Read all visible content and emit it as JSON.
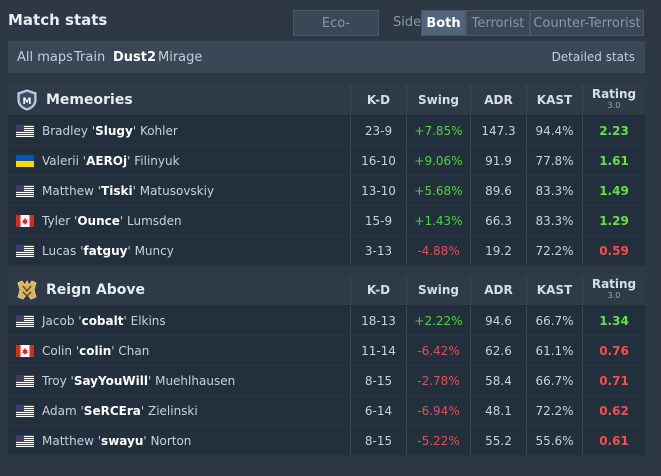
{
  "header": {
    "title": "Match stats",
    "eco_label": "Eco-adjusted",
    "side_label": "Side",
    "side_options": [
      "Both",
      "Terrorist",
      "Counter-Terrorist"
    ],
    "selected_side": "Both"
  },
  "maps": {
    "items": [
      "All maps",
      "Train",
      "Dust2",
      "Mirage"
    ],
    "active": "Dust2",
    "detailed_label": "Detailed stats"
  },
  "columns": {
    "kd": "K-D",
    "swing": "Swing",
    "adr": "ADR",
    "kast": "KAST",
    "rating": "Rating",
    "rating_version": "3.0"
  },
  "teams": [
    {
      "name": "Memeories",
      "logo_icon": "memeories-shield-logo",
      "players": [
        {
          "first": "Bradley",
          "nick": "Slugy",
          "last": "Kohler",
          "flag": "us",
          "kd": "23-9",
          "swing": "+7.85%",
          "adr": "147.3",
          "kast": "94.4%",
          "rating": "2.23"
        },
        {
          "first": "Valerii",
          "nick": "AEROj",
          "last": "Filinyuk",
          "flag": "ua",
          "kd": "16-10",
          "swing": "+9.06%",
          "adr": "91.9",
          "kast": "77.8%",
          "rating": "1.61"
        },
        {
          "first": "Matthew",
          "nick": "Tiski",
          "last": "Matusovskiy",
          "flag": "us",
          "kd": "13-10",
          "swing": "+5.68%",
          "adr": "89.6",
          "kast": "83.3%",
          "rating": "1.49"
        },
        {
          "first": "Tyler",
          "nick": "Ounce",
          "last": "Lumsden",
          "flag": "ca",
          "kd": "15-9",
          "swing": "+1.43%",
          "adr": "66.3",
          "kast": "83.3%",
          "rating": "1.29"
        },
        {
          "first": "Lucas",
          "nick": "fatguy",
          "last": "Muncy",
          "flag": "us",
          "kd": "3-13",
          "swing": "-4.88%",
          "adr": "19.2",
          "kast": "72.2%",
          "rating": "0.59"
        }
      ]
    },
    {
      "name": "Reign Above",
      "logo_icon": "reign-above-logo",
      "players": [
        {
          "first": "Jacob",
          "nick": "cobalt",
          "last": "Elkins",
          "flag": "us",
          "kd": "18-13",
          "swing": "+2.22%",
          "adr": "94.6",
          "kast": "66.7%",
          "rating": "1.34"
        },
        {
          "first": "Colin",
          "nick": "colin",
          "last": "Chan",
          "flag": "ca",
          "kd": "11-14",
          "swing": "-6.42%",
          "adr": "62.6",
          "kast": "61.1%",
          "rating": "0.76"
        },
        {
          "first": "Troy",
          "nick": "SayYouWill",
          "last": "Muehlhausen",
          "flag": "us",
          "kd": "8-15",
          "swing": "-2.78%",
          "adr": "58.4",
          "kast": "66.7%",
          "rating": "0.71"
        },
        {
          "first": "Adam",
          "nick": "SeRCEra",
          "last": "Zielinski",
          "flag": "us",
          "kd": "6-14",
          "swing": "-6.94%",
          "adr": "48.1",
          "kast": "72.2%",
          "rating": "0.62"
        },
        {
          "first": "Matthew",
          "nick": "swayu",
          "last": "Norton",
          "flag": "us",
          "kd": "8-15",
          "swing": "-5.22%",
          "adr": "55.2",
          "kast": "55.6%",
          "rating": "0.61"
        }
      ]
    }
  ],
  "colors": {
    "positive": "#4ed43b",
    "negative": "#e64e4e",
    "rating_positive": "#62e33f",
    "rating_negative": "#ff4a4a"
  }
}
